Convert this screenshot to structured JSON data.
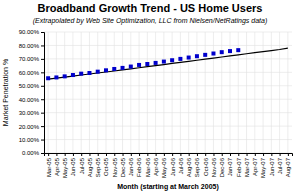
{
  "chart_data": {
    "type": "line",
    "title": "Broadband Growth Trend - US Home Users",
    "subtitle": "(Extrapolated by Web Site Optimization, LLC from Nielsen/NetRatings data)",
    "xlabel": "Month (starting at March 2005)",
    "ylabel": "Market Penetration %",
    "categories": [
      "Mar-05",
      "Apr-05",
      "May-05",
      "Jun-05",
      "Jul-05",
      "Aug-05",
      "Sep-05",
      "Oct-05",
      "Nov-05",
      "Dec-05",
      "Jan-06",
      "Feb-06",
      "Mar-06",
      "Apr-06",
      "May-06",
      "Jun-06",
      "Jul-06",
      "Aug-06",
      "Sep-06",
      "Oct-06",
      "Nov-06",
      "Dec-06",
      "Jan-07",
      "Feb-07",
      "Mar-07",
      "Apr-07",
      "May-07",
      "Jun-07",
      "Jul-07",
      "Aug-07"
    ],
    "series": [
      {
        "color": "#000000",
        "values": [
          0.549,
          0.557,
          0.5645,
          0.572,
          0.58,
          0.5875,
          0.595,
          0.6025,
          0.61,
          0.618,
          0.626,
          0.634,
          0.642,
          0.65,
          0.658,
          0.666,
          0.674,
          0.682,
          0.69,
          0.698,
          0.706,
          0.714,
          0.722,
          0.73,
          0.738,
          0.746,
          0.754,
          0.762,
          0.77,
          0.78
        ]
      },
      {
        "color": "#0000cc",
        "marker": "square",
        "line_style": "none",
        "values": [
          0.556,
          0.562,
          0.57,
          0.58,
          0.59,
          0.595,
          0.605,
          0.615,
          0.625,
          0.633,
          0.643,
          0.655,
          0.662,
          0.67,
          0.68,
          0.69,
          0.7,
          0.71,
          0.72,
          0.73,
          0.74,
          0.75,
          0.758,
          0.765,
          null,
          null,
          null,
          null,
          null,
          null
        ]
      }
    ],
    "ylim": [
      0.0,
      0.9
    ],
    "yticks": [
      {
        "value": 0.0,
        "label": "0.00%"
      },
      {
        "value": 0.1,
        "label": "10.00%"
      },
      {
        "value": 0.2,
        "label": "20.00%"
      },
      {
        "value": 0.3,
        "label": "30.00%"
      },
      {
        "value": 0.4,
        "label": "40.00%"
      },
      {
        "value": 0.5,
        "label": "50.00%"
      },
      {
        "value": 0.6,
        "label": "60.00%"
      },
      {
        "value": 0.7,
        "label": "70.00%"
      },
      {
        "value": 0.8,
        "label": "80.00%"
      },
      {
        "value": 0.9,
        "label": "90.00%"
      }
    ],
    "grid": true
  }
}
